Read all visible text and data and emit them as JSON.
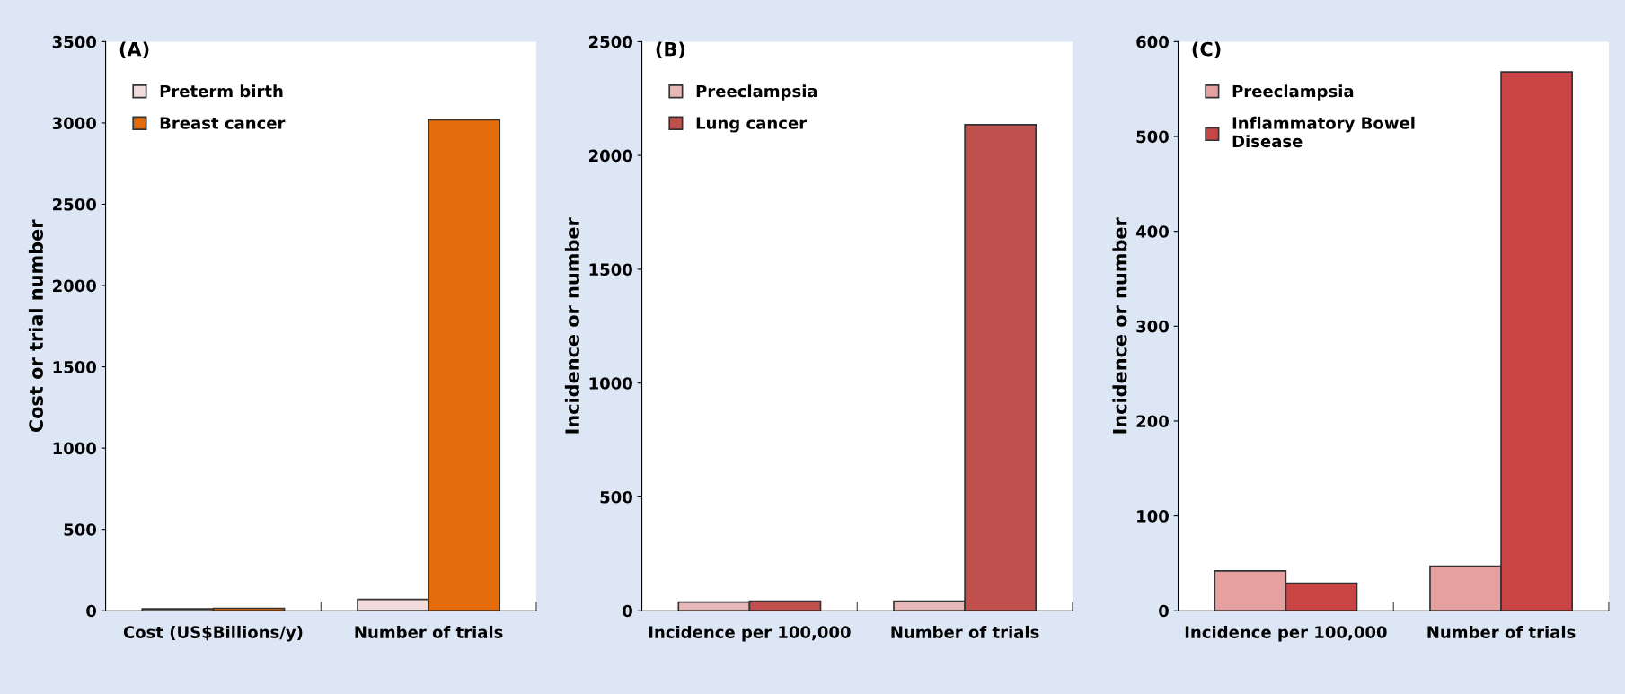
{
  "chart_data": [
    {
      "type": "bar",
      "title": "(A)",
      "ylabel": "Cost or trial number",
      "categories": [
        "Cost (US$Billions/y)",
        "Number of trials"
      ],
      "series": [
        {
          "name": "Preterm birth",
          "color": "#f2dcdb",
          "values": [
            12,
            70
          ]
        },
        {
          "name": "Breast cancer",
          "color": "#e46c0a",
          "values": [
            15,
            3020
          ]
        }
      ],
      "ylim": [
        0,
        3500
      ],
      "yticks": [
        0,
        500,
        1000,
        1500,
        2000,
        2500,
        3000,
        3500
      ],
      "grid": false,
      "legend": "top left"
    },
    {
      "type": "bar",
      "title": "(B)",
      "ylabel": "Incidence or number",
      "categories": [
        "Incidence per 100,000",
        "Number of trials"
      ],
      "series": [
        {
          "name": "Preeclampsia",
          "color": "#e6b9b8",
          "values": [
            38,
            42
          ]
        },
        {
          "name": "Lung cancer",
          "color": "#c0504d",
          "values": [
            42,
            2135
          ]
        }
      ],
      "ylim": [
        0,
        2500
      ],
      "yticks": [
        0,
        500,
        1000,
        1500,
        2000,
        2500
      ],
      "grid": false,
      "legend": "top left"
    },
    {
      "type": "bar",
      "title": "(C)",
      "ylabel": "Incidence or number",
      "categories": [
        "Incidence per 100,000",
        "Number of trials"
      ],
      "series": [
        {
          "name": "Preeclampsia",
          "color": "#e6a0a0",
          "values": [
            42,
            47
          ]
        },
        {
          "name": "Inflammatory Bowel\nDisease",
          "color": "#c94444",
          "values": [
            29,
            568
          ]
        }
      ],
      "ylim": [
        0,
        600
      ],
      "yticks": [
        0,
        100,
        200,
        300,
        400,
        500,
        600
      ],
      "grid": false,
      "legend": "top left"
    }
  ]
}
